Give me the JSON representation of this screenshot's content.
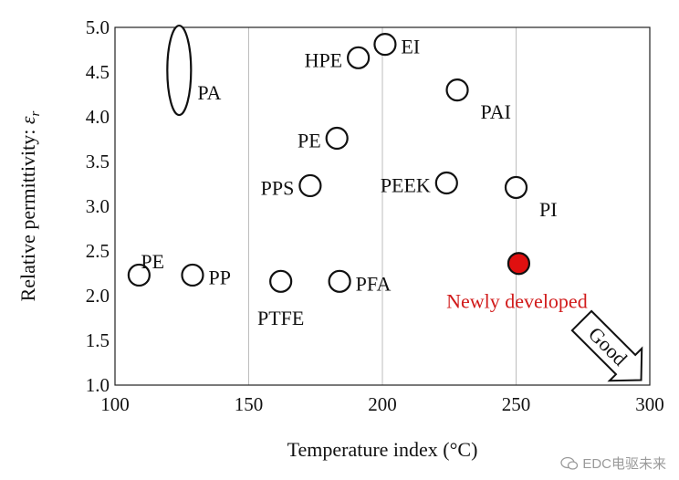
{
  "chart_data": {
    "type": "scatter",
    "title": "",
    "xlabel": "Temperature index (°C)",
    "ylabel_text": "Relative permittivity: ",
    "ylabel_symbol": "ε",
    "ylabel_subscript": "r",
    "xlim": [
      100,
      300
    ],
    "ylim": [
      1.0,
      5.0
    ],
    "x_ticks": [
      100,
      150,
      200,
      250,
      300
    ],
    "x_tick_labels": [
      "100",
      "150",
      "200",
      "250",
      "300"
    ],
    "y_ticks": [
      1.0,
      1.5,
      2.0,
      2.5,
      3.0,
      3.5,
      4.0,
      4.5,
      5.0
    ],
    "y_tick_labels": [
      "1.0",
      "1.5",
      "2.0",
      "2.5",
      "3.0",
      "3.5",
      "4.0",
      "4.5",
      "5.0"
    ],
    "grid": "vertical",
    "points": [
      {
        "label": "PE",
        "x": 109,
        "y": 2.23,
        "label_pos": "above-right"
      },
      {
        "label": "PP",
        "x": 129,
        "y": 2.23,
        "label_pos": "right"
      },
      {
        "label": "PTFE",
        "x": 162,
        "y": 2.16,
        "label_pos": "below"
      },
      {
        "label": "PFA",
        "x": 184,
        "y": 2.16,
        "label_pos": "right"
      },
      {
        "label": "PPS",
        "x": 173,
        "y": 3.23,
        "label_pos": "left"
      },
      {
        "label": "PE",
        "x": 183,
        "y": 3.76,
        "label_pos": "left"
      },
      {
        "label": "HPE",
        "x": 191,
        "y": 4.66,
        "label_pos": "left"
      },
      {
        "label": "EI",
        "x": 201,
        "y": 4.81,
        "label_pos": "right"
      },
      {
        "label": "PAI",
        "x": 228,
        "y": 4.3,
        "label_pos": "below-right"
      },
      {
        "label": "PEEK",
        "x": 224,
        "y": 3.26,
        "label_pos": "left"
      },
      {
        "label": "PI",
        "x": 250,
        "y": 3.21,
        "label_pos": "below-right"
      }
    ],
    "range_marker": {
      "label": "PA",
      "x": 124,
      "y_min": 4.02,
      "y_max": 5.02
    },
    "highlight": {
      "label": "Newly developed",
      "x": 251,
      "y": 2.36,
      "color": "#e01010"
    },
    "annotation": {
      "text": "Good",
      "direction": "down-right"
    }
  },
  "watermark": {
    "text": "EDC电驱未来"
  }
}
